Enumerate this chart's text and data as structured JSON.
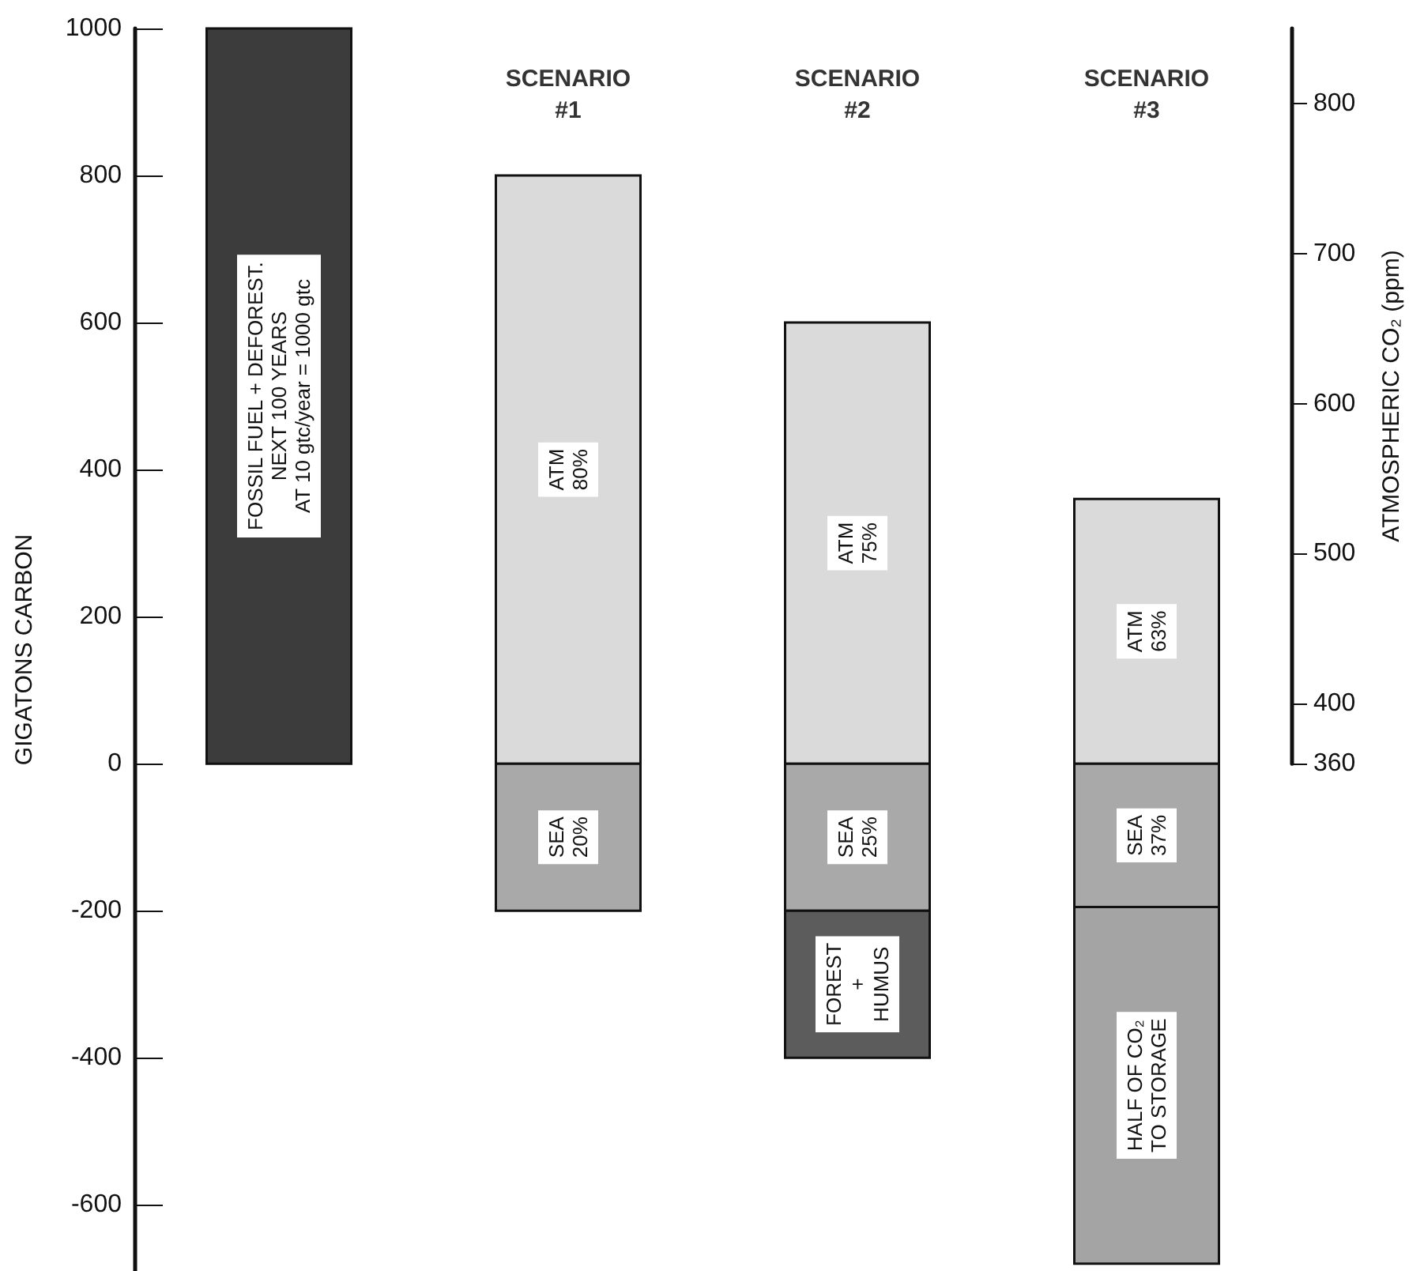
{
  "chart_data": {
    "type": "bar",
    "categories": [
      null,
      "SCENARIO\n#1",
      "SCENARIO\n#2",
      "SCENARIO\n#3"
    ],
    "series": [
      {
        "color": "#3c3c3c",
        "values": [
          1000,
          null,
          null,
          null
        ],
        "base": [
          0,
          null,
          null,
          null
        ],
        "value_labels": [
          "FOSSIL FUEL + DEFOREST.\nNEXT 100 YEARS\nAT 10 gtc/year = 1000 gtc",
          null,
          null,
          null
        ]
      },
      {
        "color": "#dadada",
        "values": [
          null,
          800,
          600,
          360
        ],
        "base": [
          null,
          0,
          0,
          0
        ],
        "value_labels": [
          null,
          "ATM\n80%",
          "ATM\n75%",
          "ATM\n63%"
        ]
      },
      {
        "color": "#a9a9a9",
        "values": [
          null,
          -200,
          -200,
          -195
        ],
        "base": [
          null,
          0,
          0,
          0
        ],
        "value_labels": [
          null,
          "SEA\n20%",
          "SEA\n25%",
          "SEA\n37%"
        ]
      },
      {
        "color": "#5c5c5c",
        "values": [
          null,
          null,
          -200,
          null
        ],
        "base": [
          null,
          null,
          -200,
          null
        ],
        "value_labels": [
          null,
          null,
          "FOREST\n+\nHUMUS",
          null
        ]
      },
      {
        "color": "#a4a4a4",
        "values": [
          null,
          null,
          null,
          -485
        ],
        "base": [
          null,
          null,
          null,
          -195
        ],
        "value_labels": [
          null,
          null,
          null,
          "HALF OF CO₂\nTO STORAGE"
        ]
      }
    ],
    "ylabel": "GIGATONS CARBON",
    "y2label": "ATMOSPHERIC CO₂ (ppm)",
    "ylim": [
      -690,
      1000
    ],
    "yticks": [
      -600,
      -400,
      -200,
      0,
      200,
      400,
      600,
      800,
      1000
    ],
    "y2lim": [
      360,
      850
    ],
    "y2ticks": [
      360,
      400,
      500,
      600,
      700,
      800
    ],
    "grid": false
  }
}
